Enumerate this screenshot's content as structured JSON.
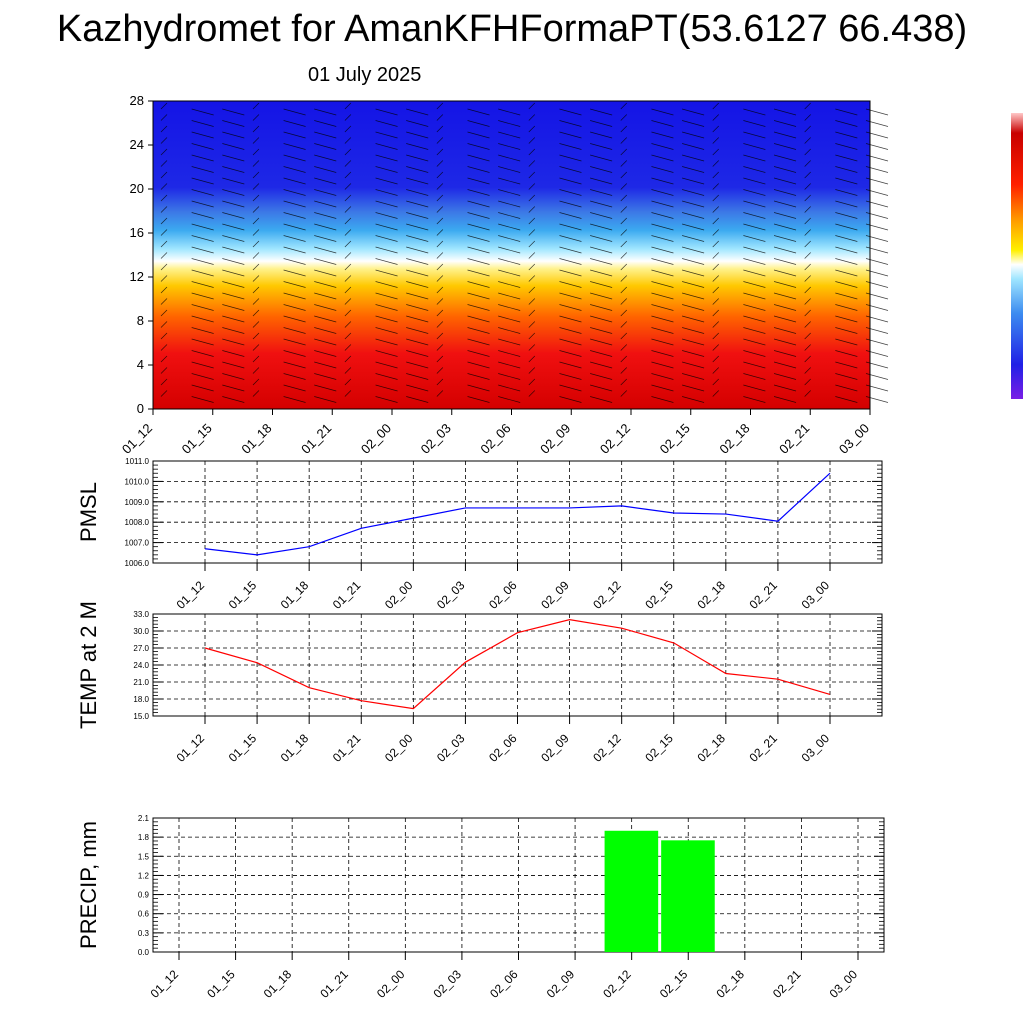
{
  "title": "Kazhydromet for AmanKFHFormaPT(53.6127 66.438)",
  "date": "01 July 2025",
  "time_labels": [
    "01_12",
    "01_15",
    "01_18",
    "01_21",
    "02_00",
    "02_03",
    "02_06",
    "02_09",
    "02_12",
    "02_15",
    "02_18",
    "02_21",
    "03_00"
  ],
  "chart_data": [
    {
      "type": "heatmap",
      "title": "",
      "xlabel": "",
      "ylabel": "",
      "x": [
        "01_12",
        "01_15",
        "01_18",
        "01_21",
        "02_00",
        "02_03",
        "02_06",
        "02_09",
        "02_12",
        "02_15",
        "02_18",
        "02_21",
        "03_00"
      ],
      "y_ticks": [
        0,
        4,
        8,
        12,
        16,
        20,
        24,
        28
      ],
      "ylim": [
        0,
        28
      ],
      "colors": {
        "low_levels": "#e60000",
        "mid_levels": "#ffe600",
        "upper_levels": "#1e1ee6"
      },
      "has_wind_barbs": true,
      "has_colorbar": true
    },
    {
      "type": "line",
      "ylabel": "PMSL",
      "x": [
        "01_12",
        "01_15",
        "01_18",
        "01_21",
        "02_00",
        "02_03",
        "02_06",
        "02_09",
        "02_12",
        "02_15",
        "02_18",
        "02_21",
        "03_00"
      ],
      "values": [
        1006.7,
        1006.4,
        1006.8,
        1007.7,
        1008.2,
        1008.7,
        1008.7,
        1008.7,
        1008.8,
        1008.45,
        1008.4,
        1008.05,
        1010.4
      ],
      "ylim": [
        1006.0,
        1011.0
      ],
      "y_ticks": [
        "1006.0",
        "1007.0",
        "1008.0",
        "1009.0",
        "1010.0",
        "1011.0"
      ],
      "color": "#0000ff",
      "grid": true
    },
    {
      "type": "line",
      "ylabel": "TEMP at 2 M",
      "x": [
        "01_12",
        "01_15",
        "01_18",
        "01_21",
        "02_00",
        "02_03",
        "02_06",
        "02_09",
        "02_12",
        "02_15",
        "02_18",
        "02_21",
        "03_00"
      ],
      "values": [
        27.0,
        24.4,
        20.0,
        17.7,
        16.3,
        24.5,
        29.7,
        32.0,
        30.5,
        27.9,
        22.5,
        21.5,
        18.8
      ],
      "ylim": [
        15.0,
        33.0
      ],
      "y_ticks": [
        "15.0",
        "18.0",
        "21.0",
        "24.0",
        "27.0",
        "30.0",
        "33.0"
      ],
      "color": "#ff0000",
      "grid": true
    },
    {
      "type": "bar",
      "ylabel": "PRECIP, mm",
      "categories": [
        "01_12",
        "01_15",
        "01_18",
        "01_21",
        "02_00",
        "02_03",
        "02_06",
        "02_09",
        "02_12",
        "02_15",
        "02_18",
        "02_21",
        "03_00"
      ],
      "values": [
        0,
        0,
        0,
        0,
        0,
        0,
        0,
        0,
        1.9,
        1.75,
        0,
        0,
        0
      ],
      "ylim": [
        0,
        2.1
      ],
      "y_ticks": [
        "0.0",
        "0.3",
        "0.6",
        "0.9",
        "1.2",
        "1.5",
        "1.8",
        "2.1"
      ],
      "color": "#00ff00",
      "grid": true
    }
  ]
}
